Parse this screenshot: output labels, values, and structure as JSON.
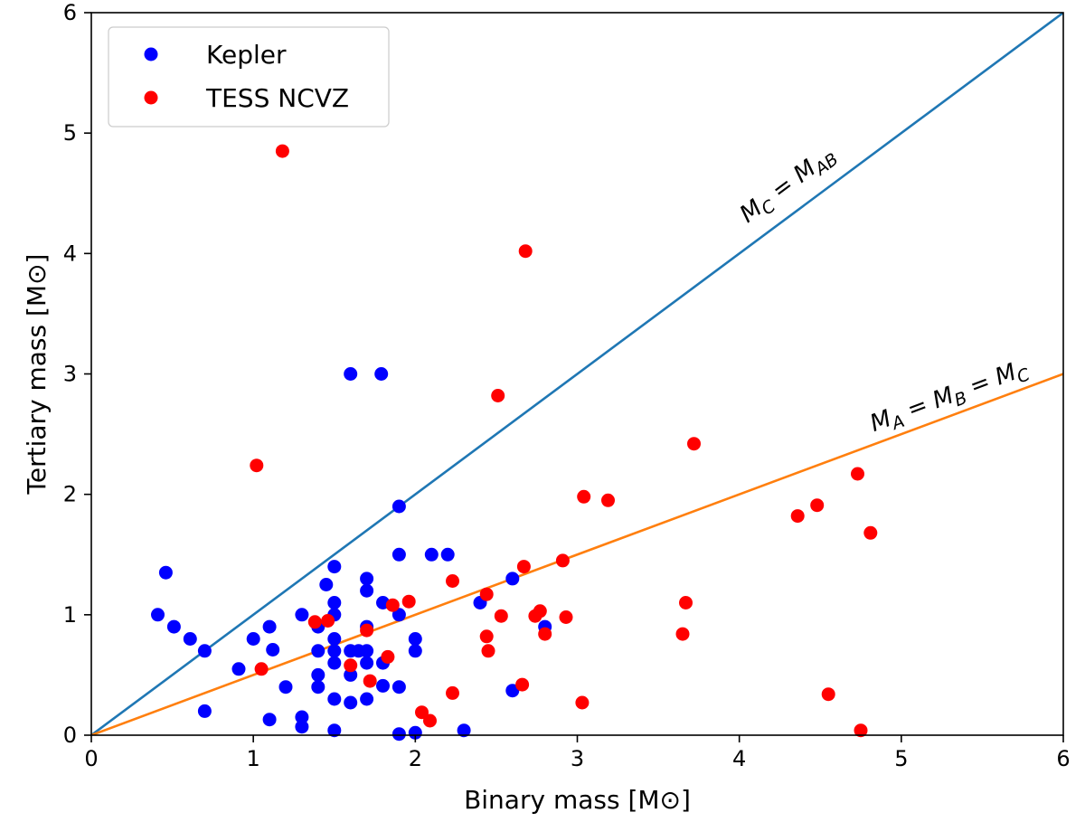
{
  "chart_data": {
    "type": "scatter",
    "xlabel": "Binary mass [M⊙]",
    "ylabel": "Tertiary mass [M⊙]",
    "xlim": [
      0,
      6
    ],
    "ylim": [
      0,
      6
    ],
    "xticks": [
      "0",
      "1",
      "2",
      "3",
      "4",
      "5",
      "6"
    ],
    "yticks": [
      "0",
      "1",
      "2",
      "3",
      "4",
      "5",
      "6"
    ],
    "grid": false,
    "legend_position": "top-left",
    "series": [
      {
        "name": "Kepler",
        "color": "#0000ff",
        "points": [
          [
            0.41,
            1.0
          ],
          [
            0.46,
            1.35
          ],
          [
            0.51,
            0.9
          ],
          [
            0.61,
            0.8
          ],
          [
            0.7,
            0.7
          ],
          [
            0.7,
            0.2
          ],
          [
            0.91,
            0.55
          ],
          [
            1.0,
            0.8
          ],
          [
            1.1,
            0.9
          ],
          [
            1.12,
            0.71
          ],
          [
            1.1,
            0.13
          ],
          [
            1.2,
            0.4
          ],
          [
            1.3,
            1.0
          ],
          [
            1.3,
            0.15
          ],
          [
            1.3,
            0.07
          ],
          [
            1.4,
            0.9
          ],
          [
            1.4,
            0.7
          ],
          [
            1.4,
            0.5
          ],
          [
            1.4,
            0.4
          ],
          [
            1.45,
            1.25
          ],
          [
            1.5,
            1.4
          ],
          [
            1.5,
            1.1
          ],
          [
            1.5,
            1.0
          ],
          [
            1.5,
            0.8
          ],
          [
            1.5,
            0.7
          ],
          [
            1.5,
            0.6
          ],
          [
            1.5,
            0.3
          ],
          [
            1.5,
            0.04
          ],
          [
            1.6,
            3.0
          ],
          [
            1.6,
            0.7
          ],
          [
            1.6,
            0.5
          ],
          [
            1.6,
            0.27
          ],
          [
            1.65,
            0.7
          ],
          [
            1.7,
            1.3
          ],
          [
            1.7,
            1.2
          ],
          [
            1.7,
            0.9
          ],
          [
            1.7,
            0.7
          ],
          [
            1.7,
            0.6
          ],
          [
            1.7,
            0.3
          ],
          [
            1.79,
            3.0
          ],
          [
            1.8,
            1.1
          ],
          [
            1.8,
            0.6
          ],
          [
            1.8,
            0.41
          ],
          [
            1.9,
            1.9
          ],
          [
            1.9,
            1.5
          ],
          [
            1.9,
            1.0
          ],
          [
            1.9,
            0.4
          ],
          [
            1.9,
            0.01
          ],
          [
            2.0,
            0.8
          ],
          [
            2.0,
            0.7
          ],
          [
            2.0,
            0.02
          ],
          [
            2.1,
            1.5
          ],
          [
            2.2,
            1.5
          ],
          [
            2.3,
            0.04
          ],
          [
            2.4,
            1.1
          ],
          [
            2.6,
            1.3
          ],
          [
            2.6,
            0.37
          ],
          [
            2.8,
            0.9
          ]
        ]
      },
      {
        "name": "TESS NCVZ",
        "color": "#ff0000",
        "points": [
          [
            1.18,
            4.85
          ],
          [
            1.02,
            2.24
          ],
          [
            1.05,
            0.55
          ],
          [
            1.38,
            0.94
          ],
          [
            1.46,
            0.95
          ],
          [
            1.6,
            0.58
          ],
          [
            1.7,
            0.87
          ],
          [
            1.72,
            0.45
          ],
          [
            1.83,
            0.65
          ],
          [
            1.86,
            1.08
          ],
          [
            1.96,
            1.11
          ],
          [
            2.04,
            0.19
          ],
          [
            2.09,
            0.12
          ],
          [
            2.23,
            1.28
          ],
          [
            2.23,
            0.35
          ],
          [
            2.44,
            1.17
          ],
          [
            2.44,
            0.82
          ],
          [
            2.45,
            0.7
          ],
          [
            2.51,
            2.82
          ],
          [
            2.53,
            0.99
          ],
          [
            2.66,
            0.42
          ],
          [
            2.67,
            1.4
          ],
          [
            2.68,
            4.02
          ],
          [
            2.74,
            0.99
          ],
          [
            2.77,
            1.03
          ],
          [
            2.8,
            0.84
          ],
          [
            2.91,
            1.45
          ],
          [
            2.93,
            0.98
          ],
          [
            3.03,
            0.27
          ],
          [
            3.04,
            1.98
          ],
          [
            3.19,
            1.95
          ],
          [
            3.65,
            0.84
          ],
          [
            3.67,
            1.1
          ],
          [
            3.72,
            2.42
          ],
          [
            4.36,
            1.82
          ],
          [
            4.48,
            1.91
          ],
          [
            4.55,
            0.34
          ],
          [
            4.73,
            2.17
          ],
          [
            4.75,
            0.04
          ],
          [
            4.81,
            1.68
          ]
        ]
      }
    ],
    "lines": [
      {
        "name": "MC = MAB",
        "color": "#1f77b4",
        "slope": 1.0,
        "label": {
          "main": "M",
          "parts": [
            [
              "C",
              "sub"
            ],
            [
              " = M",
              "main"
            ],
            [
              "AB",
              "sub"
            ]
          ],
          "anchor_x": 4.05,
          "anchor_y": 4.25
        }
      },
      {
        "name": "MA = MB = MC",
        "color": "#ff7f0e",
        "slope": 0.5,
        "label": {
          "main": "M",
          "parts": [
            [
              "A",
              "sub"
            ],
            [
              " = M",
              "main"
            ],
            [
              "B",
              "sub"
            ],
            [
              " = M",
              "main"
            ],
            [
              "C",
              "sub"
            ]
          ],
          "anchor_x": 4.83,
          "anchor_y": 2.52
        }
      }
    ]
  }
}
